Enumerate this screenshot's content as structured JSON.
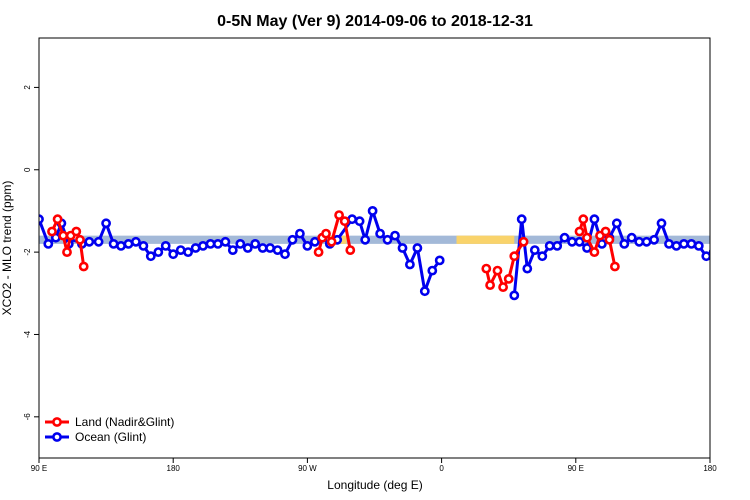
{
  "chart_data": {
    "type": "line",
    "title": "0-5N May (Ver 9)   2014-09-06 to 2018-12-31",
    "xlabel": "Longitude (deg E)",
    "ylabel": "XCO2 - MLO trend (ppm)",
    "xlim": [
      90,
      450
    ],
    "ylim": [
      -7,
      3.2
    ],
    "x_ticks": [
      {
        "value": 90,
        "label": "90 E"
      },
      {
        "value": 162,
        "label": "180"
      },
      {
        "value": 234,
        "label": "90 W"
      },
      {
        "value": 306,
        "label": "0"
      },
      {
        "value": 378,
        "label": "90 E"
      },
      {
        "value": 450,
        "label": "180"
      }
    ],
    "y_ticks": [
      {
        "value": -6,
        "label": "-6"
      },
      {
        "value": -4,
        "label": "-4"
      },
      {
        "value": -2,
        "label": "-2"
      },
      {
        "value": 0,
        "label": "0"
      },
      {
        "value": 2,
        "label": "2"
      }
    ],
    "grid": false,
    "legend_position": "bottom-left",
    "band": {
      "y_low": -1.8,
      "y_high": -1.6,
      "ocean_color": "#a3b9d8",
      "land_color": "#f9d36b",
      "land_segments": [
        [
          246,
          255
        ],
        [
          314,
          345
        ]
      ]
    },
    "series": [
      {
        "name": "Land (Nadir&Glint)",
        "color": "#ff0000",
        "segments": [
          [
            [
              97,
              -1.5
            ],
            [
              100,
              -1.2
            ],
            [
              103,
              -1.6
            ],
            [
              105,
              -2.0
            ],
            [
              107,
              -1.6
            ],
            [
              110,
              -1.5
            ],
            [
              112,
              -1.7
            ],
            [
              114,
              -2.35
            ]
          ],
          [
            [
              240,
              -2.0
            ],
            [
              242,
              -1.65
            ],
            [
              244,
              -1.55
            ],
            [
              247,
              -1.75
            ],
            [
              251,
              -1.1
            ],
            [
              254,
              -1.25
            ],
            [
              257,
              -1.95
            ]
          ],
          [
            [
              330,
              -2.4
            ],
            [
              332,
              -2.8
            ],
            [
              336,
              -2.45
            ],
            [
              339,
              -2.85
            ],
            [
              342,
              -2.65
            ],
            [
              345,
              -2.1
            ],
            [
              350,
              -1.75
            ]
          ],
          [
            [
              380,
              -1.5
            ],
            [
              382,
              -1.2
            ],
            [
              384,
              -1.65
            ],
            [
              388,
              -2.0
            ],
            [
              391,
              -1.6
            ],
            [
              394,
              -1.5
            ],
            [
              396,
              -1.7
            ],
            [
              399,
              -2.35
            ]
          ]
        ]
      },
      {
        "name": "Ocean (Glint)",
        "color": "#0000ee",
        "segments": [
          [
            [
              90,
              -1.2
            ],
            [
              95,
              -1.8
            ],
            [
              99,
              -1.65
            ],
            [
              102,
              -1.3
            ],
            [
              106,
              -1.8
            ],
            [
              110,
              -1.65
            ],
            [
              113,
              -1.8
            ],
            [
              117,
              -1.75
            ],
            [
              122,
              -1.75
            ],
            [
              126,
              -1.3
            ],
            [
              130,
              -1.8
            ],
            [
              134,
              -1.85
            ],
            [
              138,
              -1.8
            ],
            [
              142,
              -1.75
            ],
            [
              146,
              -1.85
            ],
            [
              150,
              -2.1
            ],
            [
              154,
              -2.0
            ],
            [
              158,
              -1.85
            ],
            [
              162,
              -2.05
            ],
            [
              166,
              -1.95
            ],
            [
              170,
              -2.0
            ],
            [
              174,
              -1.9
            ],
            [
              178,
              -1.85
            ],
            [
              182,
              -1.8
            ],
            [
              186,
              -1.8
            ],
            [
              190,
              -1.75
            ],
            [
              194,
              -1.95
            ],
            [
              198,
              -1.8
            ],
            [
              202,
              -1.9
            ],
            [
              206,
              -1.8
            ],
            [
              210,
              -1.9
            ],
            [
              214,
              -1.9
            ],
            [
              218,
              -1.95
            ],
            [
              222,
              -2.05
            ],
            [
              226,
              -1.7
            ],
            [
              230,
              -1.55
            ],
            [
              234,
              -1.85
            ],
            [
              238,
              -1.75
            ],
            [
              242,
              -1.65
            ],
            [
              246,
              -1.8
            ],
            [
              250,
              -1.7
            ],
            [
              258,
              -1.2
            ],
            [
              262,
              -1.25
            ],
            [
              265,
              -1.7
            ],
            [
              269,
              -1.0
            ],
            [
              273,
              -1.55
            ],
            [
              277,
              -1.7
            ],
            [
              281,
              -1.6
            ],
            [
              285,
              -1.9
            ],
            [
              289,
              -2.3
            ],
            [
              293,
              -1.9
            ],
            [
              297,
              -2.95
            ],
            [
              301,
              -2.45
            ],
            [
              305,
              -2.2
            ]
          ],
          [
            [
              345,
              -3.05
            ],
            [
              349,
              -1.2
            ],
            [
              352,
              -2.4
            ],
            [
              356,
              -1.95
            ],
            [
              360,
              -2.1
            ],
            [
              364,
              -1.85
            ],
            [
              368,
              -1.85
            ],
            [
              372,
              -1.65
            ],
            [
              376,
              -1.75
            ],
            [
              380,
              -1.75
            ],
            [
              384,
              -1.9
            ],
            [
              388,
              -1.2
            ],
            [
              392,
              -1.8
            ],
            [
              396,
              -1.65
            ],
            [
              400,
              -1.3
            ],
            [
              404,
              -1.8
            ],
            [
              408,
              -1.65
            ],
            [
              412,
              -1.75
            ],
            [
              416,
              -1.75
            ],
            [
              420,
              -1.7
            ],
            [
              424,
              -1.3
            ],
            [
              428,
              -1.8
            ],
            [
              432,
              -1.85
            ],
            [
              436,
              -1.8
            ],
            [
              440,
              -1.8
            ],
            [
              444,
              -1.85
            ],
            [
              448,
              -2.1
            ],
            [
              452,
              -2.0
            ],
            [
              456,
              -1.85
            ]
          ]
        ]
      }
    ]
  }
}
